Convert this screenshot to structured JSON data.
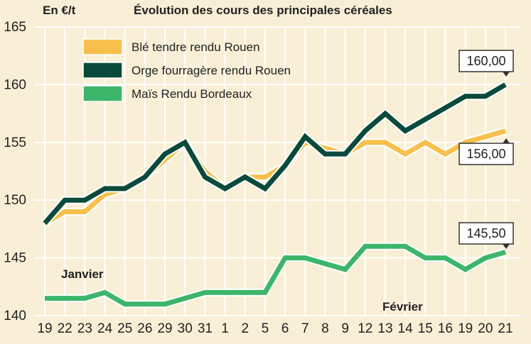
{
  "header": {
    "unit": "En €/t",
    "title": "Évolution des cours des principales céréales"
  },
  "chart_data": {
    "type": "line",
    "title": "Évolution des cours des principales céréales",
    "ylabel": "En €/t",
    "ylim": [
      140,
      165
    ],
    "yticks": [
      140,
      145,
      150,
      155,
      160,
      165
    ],
    "grid": true,
    "legend_position": "top-left",
    "x": [
      "19",
      "22",
      "23",
      "24",
      "25",
      "26",
      "29",
      "30",
      "31",
      "1",
      "2",
      "5",
      "6",
      "7",
      "8",
      "9",
      "12",
      "13",
      "14",
      "15",
      "16",
      "19",
      "20",
      "21"
    ],
    "period_labels": [
      {
        "text": "Janvier",
        "after_index": 0
      },
      {
        "text": "Février",
        "after_index": 17
      }
    ],
    "series": [
      {
        "name": "Blé tendre rendu Rouen",
        "color": "#f7c04c",
        "values": [
          148,
          149,
          149,
          150.5,
          151,
          152,
          153.5,
          155,
          152.5,
          151,
          152,
          152,
          153,
          155,
          154.5,
          154,
          155,
          155,
          154,
          155,
          154,
          155,
          155.5,
          156
        ],
        "end_label": "156,00"
      },
      {
        "name": "Orge fourragère rendu Rouen",
        "color": "#0b4a3a",
        "values": [
          148,
          150,
          150,
          151,
          151,
          152,
          154,
          155,
          152,
          151,
          152,
          151,
          153,
          155.5,
          154,
          154,
          156,
          157.5,
          156,
          157,
          158,
          159,
          159,
          160
        ],
        "end_label": "160,00"
      },
      {
        "name": "Maïs Rendu Bordeaux",
        "color": "#3db56b",
        "values": [
          141.5,
          141.5,
          141.5,
          142,
          141,
          141,
          141,
          141.5,
          142,
          142,
          142,
          142,
          145,
          145,
          144.5,
          144,
          146,
          146,
          146,
          145,
          145,
          144,
          145,
          145.5
        ],
        "end_label": "145,50"
      }
    ]
  }
}
